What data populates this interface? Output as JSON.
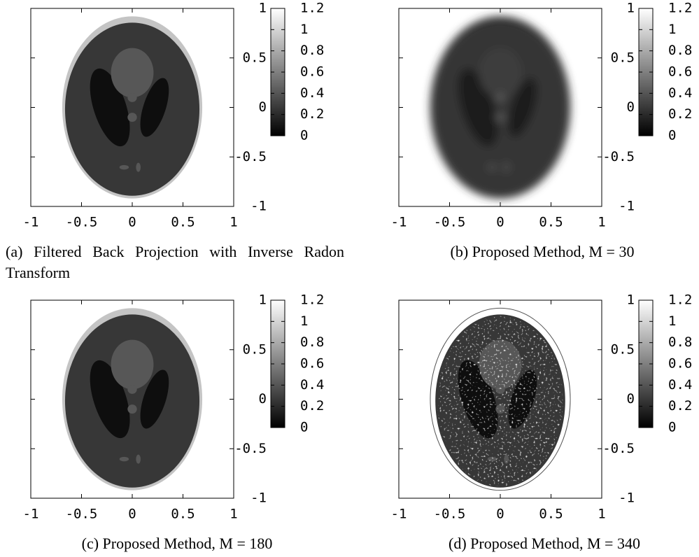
{
  "chart_data": [
    {
      "type": "heatmap",
      "caption": "(a) Filtered Back Projection with Inverse Radon Transform",
      "xlim": [
        -1,
        1
      ],
      "ylim": [
        -1,
        1
      ],
      "xticks": [
        -1,
        -0.5,
        0,
        0.5,
        1
      ],
      "yticks": [
        -1,
        -0.5,
        0,
        0.5,
        1
      ],
      "colorbar": {
        "lim": [
          0,
          1.2
        ],
        "ticks": [
          0,
          0.2,
          0.4,
          0.6,
          0.8,
          1,
          1.2
        ],
        "colors": [
          "#000000",
          "#ffffff"
        ]
      }
    },
    {
      "type": "heatmap",
      "caption": "(b) Proposed Method, M = 30",
      "xlim": [
        -1,
        1
      ],
      "ylim": [
        -1,
        1
      ],
      "xticks": [
        -1,
        -0.5,
        0,
        0.5,
        1
      ],
      "yticks": [
        -1,
        -0.5,
        0,
        0.5,
        1
      ],
      "colorbar": {
        "lim": [
          0,
          1.2
        ],
        "ticks": [
          0,
          0.2,
          0.4,
          0.6,
          0.8,
          1,
          1.2
        ],
        "colors": [
          "#000000",
          "#ffffff"
        ]
      }
    },
    {
      "type": "heatmap",
      "caption": "(c) Proposed Method, M = 180",
      "xlim": [
        -1,
        1
      ],
      "ylim": [
        -1,
        1
      ],
      "xticks": [
        -1,
        -0.5,
        0,
        0.5,
        1
      ],
      "yticks": [
        -1,
        -0.5,
        0,
        0.5,
        1
      ],
      "colorbar": {
        "lim": [
          0,
          1.2
        ],
        "ticks": [
          0,
          0.2,
          0.4,
          0.6,
          0.8,
          1,
          1.2
        ],
        "colors": [
          "#000000",
          "#ffffff"
        ]
      }
    },
    {
      "type": "heatmap",
      "caption": "(d) Proposed Method, M = 340",
      "xlim": [
        -1,
        1
      ],
      "ylim": [
        -1,
        1
      ],
      "xticks": [
        -1,
        -0.5,
        0,
        0.5,
        1
      ],
      "yticks": [
        -1,
        -0.5,
        0,
        0.5,
        1
      ],
      "colorbar": {
        "lim": [
          0,
          1.2
        ],
        "ticks": [
          0,
          0.2,
          0.4,
          0.6,
          0.8,
          1,
          1.2
        ],
        "colors": [
          "#000000",
          "#ffffff"
        ]
      }
    }
  ]
}
